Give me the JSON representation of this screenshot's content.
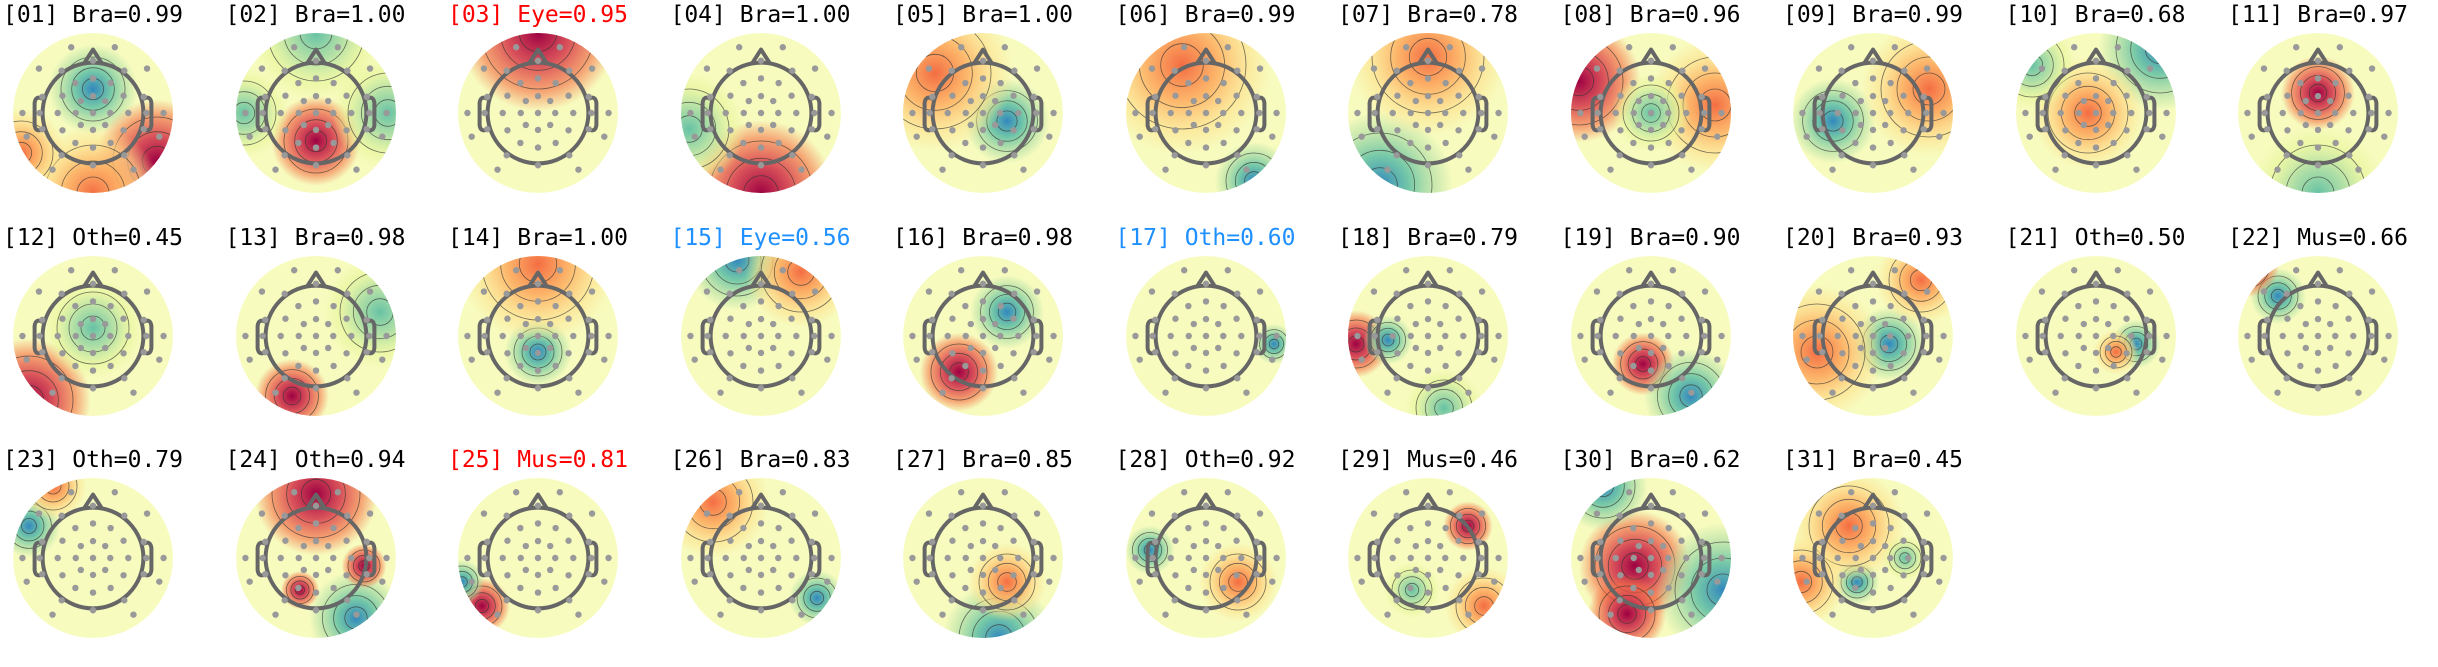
{
  "chart_data": {
    "type": "heatmap",
    "layout": "grid of scalp topographic maps, 3 rows x 11 columns",
    "colormap": "Spectral_r (blue negative, yellow neutral, red positive)",
    "title_colors": {
      "default": "#000000",
      "flagged": "#ff0000",
      "highlight": "#1e90ff"
    },
    "panels": [
      {
        "title": "[01] Bra=0.99",
        "color": "default"
      },
      {
        "title": "[02] Bra=1.00",
        "color": "default"
      },
      {
        "title": "[03] Eye=0.95",
        "color": "flagged"
      },
      {
        "title": "[04] Bra=1.00",
        "color": "default"
      },
      {
        "title": "[05] Bra=1.00",
        "color": "default"
      },
      {
        "title": "[06] Bra=0.99",
        "color": "default"
      },
      {
        "title": "[07] Bra=0.78",
        "color": "default"
      },
      {
        "title": "[08] Bra=0.96",
        "color": "default"
      },
      {
        "title": "[09] Bra=0.99",
        "color": "default"
      },
      {
        "title": "[10] Bra=0.68",
        "color": "default"
      },
      {
        "title": "[11] Bra=0.97",
        "color": "default"
      },
      {
        "title": "[12] Oth=0.45",
        "color": "default"
      },
      {
        "title": "[13] Bra=0.98",
        "color": "default"
      },
      {
        "title": "[14] Bra=1.00",
        "color": "default"
      },
      {
        "title": "[15] Eye=0.56",
        "color": "highlight"
      },
      {
        "title": "[16] Bra=0.98",
        "color": "default"
      },
      {
        "title": "[17] Oth=0.60",
        "color": "highlight"
      },
      {
        "title": "[18] Bra=0.79",
        "color": "default"
      },
      {
        "title": "[19] Bra=0.90",
        "color": "default"
      },
      {
        "title": "[20] Bra=0.93",
        "color": "default"
      },
      {
        "title": "[21] Oth=0.50",
        "color": "default"
      },
      {
        "title": "[22] Mus=0.66",
        "color": "default"
      },
      {
        "title": "[23] Oth=0.79",
        "color": "default"
      },
      {
        "title": "[24] Oth=0.94",
        "color": "default"
      },
      {
        "title": "[25] Mus=0.81",
        "color": "flagged"
      },
      {
        "title": "[26] Bra=0.83",
        "color": "default"
      },
      {
        "title": "[27] Bra=0.85",
        "color": "default"
      },
      {
        "title": "[28] Oth=0.92",
        "color": "default"
      },
      {
        "title": "[29] Mus=0.46",
        "color": "default"
      },
      {
        "title": "[30] Bra=0.62",
        "color": "default"
      },
      {
        "title": "[31] Bra=0.45",
        "color": "default"
      }
    ]
  }
}
